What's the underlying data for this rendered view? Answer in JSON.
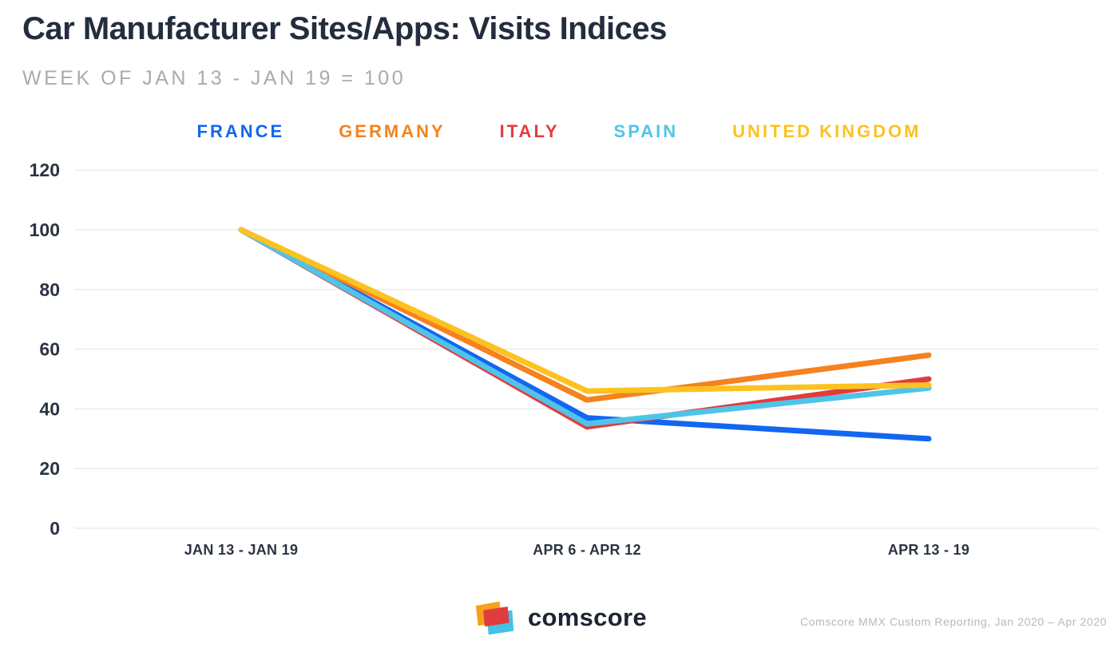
{
  "title": "Car Manufacturer Sites/Apps: Visits Indices",
  "subtitle": "WEEK OF JAN 13 - JAN 19 = 100",
  "colors": {
    "france_blue": "#1266f1",
    "germany_orange": "#f5821f",
    "italy_red": "#e23b3e",
    "spain_cyan": "#4fc4e8",
    "uk_yellow": "#fcc21f",
    "text_dark": "#232d3d",
    "text_gray": "#a9abaf",
    "gridline": "#ebebeb"
  },
  "legend": [
    {
      "label": "FRANCE",
      "color": "#1266f1"
    },
    {
      "label": "GERMANY",
      "color": "#f5821f"
    },
    {
      "label": "ITALY",
      "color": "#e23b3e"
    },
    {
      "label": "SPAIN",
      "color": "#4fc4e8"
    },
    {
      "label": "UNITED KINGDOM",
      "color": "#fcc21f"
    }
  ],
  "chart_data": {
    "type": "line",
    "categories": [
      "JAN 13 - JAN 19",
      "APR 6 - APR 12",
      "APR 13 - 19"
    ],
    "series": [
      {
        "name": "France",
        "color": "#1266f1",
        "values": [
          100,
          37,
          30
        ]
      },
      {
        "name": "Germany",
        "color": "#f5821f",
        "values": [
          100,
          43,
          58
        ]
      },
      {
        "name": "Italy",
        "color": "#e23b3e",
        "values": [
          100,
          34,
          50
        ]
      },
      {
        "name": "Spain",
        "color": "#4fc4e8",
        "values": [
          100,
          35,
          47
        ]
      },
      {
        "name": "United Kingdom",
        "color": "#fcc21f",
        "values": [
          100,
          46,
          48
        ]
      }
    ],
    "y_ticks": [
      120,
      100,
      80,
      60,
      40,
      20,
      0
    ],
    "ylim": [
      0,
      120
    ],
    "grid": true,
    "legend_position": "top",
    "title": "Car Manufacturer Sites/Apps: Visits Indices",
    "subtitle": "WEEK OF JAN 13 - JAN 19 = 100",
    "xlabel": "",
    "ylabel": ""
  },
  "footer": {
    "logo_text": "comscore",
    "source": "Comscore MMX Custom Reporting, Jan 2020 – Apr 2020"
  }
}
